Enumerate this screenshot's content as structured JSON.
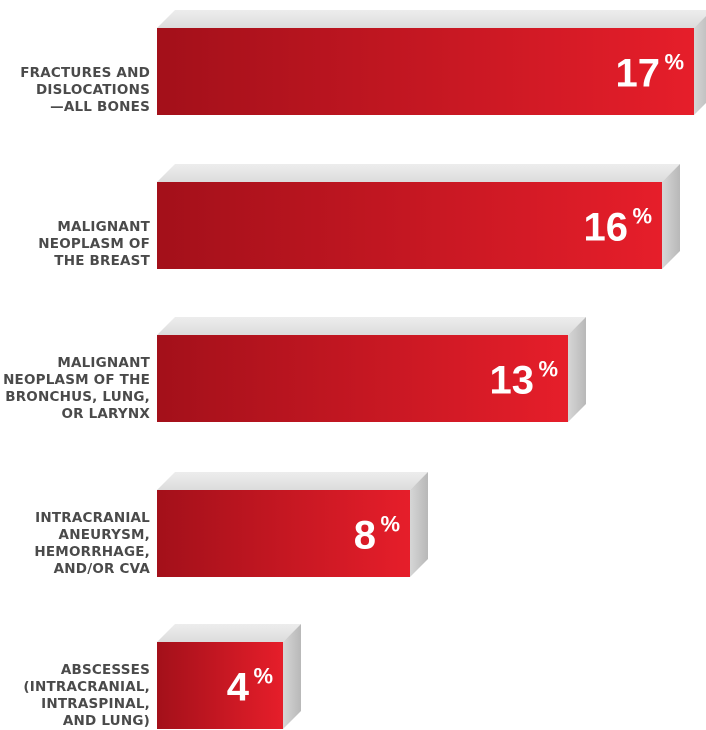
{
  "chart_data": {
    "type": "bar",
    "orientation": "horizontal",
    "categories": [
      "FRACTURES AND DISLOCATIONS —ALL BONES",
      "MALIGNANT NEOPLASM OF THE BREAST",
      "MALIGNANT NEOPLASM OF THE BRONCHUS, LUNG, OR LARYNX",
      "INTRACRANIAL ANEURYSM, HEMORRHAGE, AND/OR CVA",
      "ABSCESSES (INTRACRANIAL, INTRASPINAL, AND LUNG)"
    ],
    "category_lines": [
      [
        "FRACTURES AND",
        "DISLOCATIONS",
        "—ALL BONES"
      ],
      [
        "MALIGNANT",
        "NEOPLASM OF",
        "THE BREAST"
      ],
      [
        "MALIGNANT",
        "NEOPLASM OF THE",
        "BRONCHUS, LUNG,",
        "OR  LARYNX"
      ],
      [
        "INTRACRANIAL",
        "ANEURYSM,",
        "HEMORRHAGE,",
        "AND/OR CVA"
      ],
      [
        "ABSCESSES",
        "(INTRACRANIAL,",
        "INTRASPINAL,",
        "AND LUNG)"
      ]
    ],
    "values": [
      17,
      16,
      13,
      8,
      4
    ],
    "value_labels": [
      "17",
      "16",
      "13",
      "8",
      "4"
    ],
    "unit": "%",
    "xlim": [
      0,
      17
    ],
    "grid": false,
    "legend": "none",
    "colors": {
      "bar_dark": "#a3101a",
      "bar_light": "#e61e2a",
      "top_face": "#e2e2e2",
      "side_face": "#c4c4c4",
      "label": "#4a4a4a",
      "value_text": "#ffffff"
    }
  }
}
